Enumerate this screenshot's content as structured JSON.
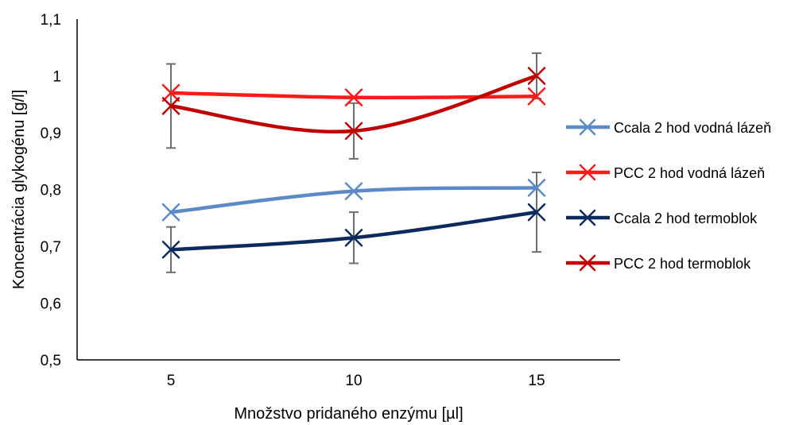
{
  "chart_data": {
    "type": "line",
    "title": "",
    "xlabel": "Množstvo pridaného enzýmu [µl]",
    "ylabel": "Koncentrácia glykogénu [g/l]",
    "categories": [
      "5",
      "10",
      "15"
    ],
    "ylim": [
      0.5,
      1.1
    ],
    "y_ticks": [
      "0,5",
      "0,6",
      "0,7",
      "0,8",
      "0,9",
      "1",
      "1,1"
    ],
    "grid": false,
    "legend_position": "right",
    "series": [
      {
        "name": "Ccala 2 hod vodná lázeň",
        "color": "#5b8ac6",
        "values": [
          0.76,
          0.797,
          0.803
        ],
        "error": [
          null,
          null,
          null
        ]
      },
      {
        "name": "PCC 2 hod vodná lázeň",
        "color": "#ff1a1a",
        "values": [
          0.97,
          0.962,
          0.964
        ],
        "error": [
          null,
          null,
          null
        ]
      },
      {
        "name": "Ccala 2 hod termoblok",
        "color": "#0d2a5e",
        "values": [
          0.694,
          0.715,
          0.76
        ],
        "error": [
          0.04,
          0.045,
          0.07
        ]
      },
      {
        "name": "PCC 2 hod termoblok",
        "color": "#c00000",
        "values": [
          0.947,
          0.903,
          1.0
        ],
        "error": [
          0.074,
          0.049,
          0.04
        ]
      }
    ],
    "error_bar_color": "#6e6e6e"
  }
}
